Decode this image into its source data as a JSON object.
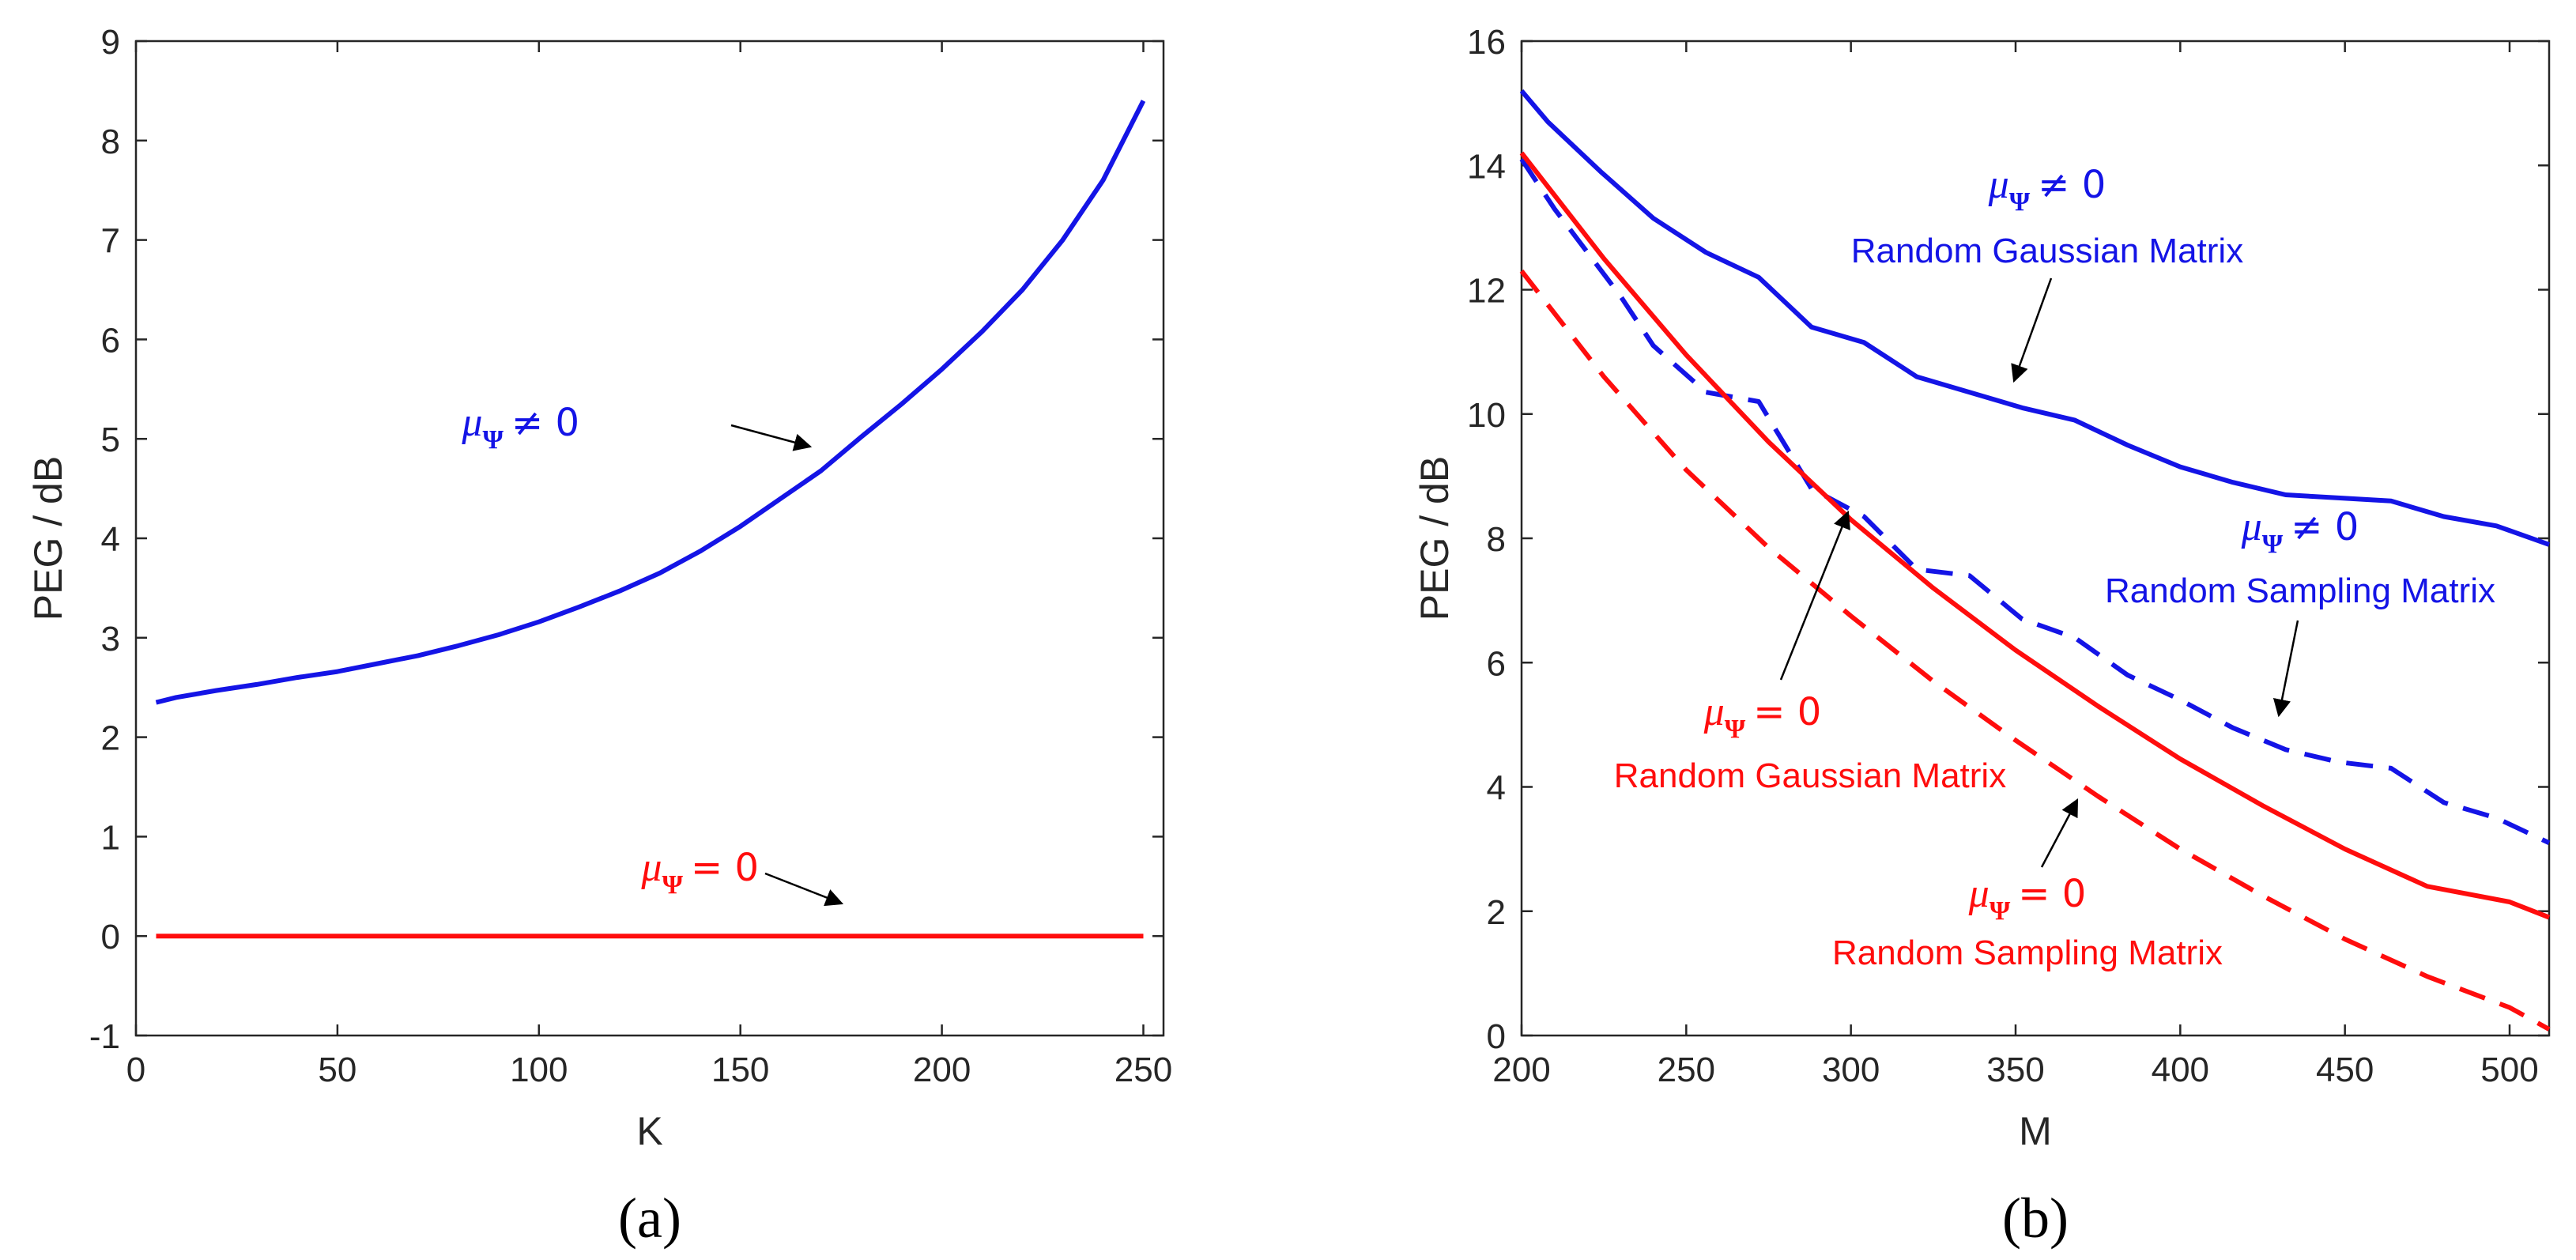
{
  "colors": {
    "blue": "#1414e6",
    "red": "#ff0d0d",
    "axis": "#262626"
  },
  "chart_data": [
    {
      "type": "line",
      "panel_label": "(a)",
      "xlabel": "K",
      "ylabel": "PEG / dB",
      "xlim": [
        0,
        255
      ],
      "ylim": [
        -1,
        9
      ],
      "xticks": [
        "0",
        "50",
        "100",
        "150",
        "200",
        "250"
      ],
      "yticks": [
        "-1",
        "0",
        "1",
        "2",
        "3",
        "4",
        "5",
        "6",
        "7",
        "8",
        "9"
      ],
      "series": [
        {
          "name": "mu_Psi != 0",
          "color": "blue",
          "style": "solid",
          "x": [
            5,
            10,
            20,
            30,
            40,
            50,
            60,
            70,
            80,
            90,
            100,
            110,
            120,
            130,
            140,
            150,
            160,
            170,
            180,
            190,
            200,
            210,
            220,
            230,
            240,
            250
          ],
          "values": [
            2.35,
            2.4,
            2.47,
            2.53,
            2.6,
            2.66,
            2.74,
            2.82,
            2.92,
            3.03,
            3.16,
            3.31,
            3.47,
            3.65,
            3.87,
            4.12,
            4.4,
            4.68,
            5.02,
            5.35,
            5.7,
            6.08,
            6.5,
            7.0,
            7.6,
            8.4
          ]
        },
        {
          "name": "mu_Psi = 0",
          "color": "red",
          "style": "solid",
          "x": [
            5,
            250
          ],
          "values": [
            0,
            0
          ]
        }
      ],
      "annotations": [
        {
          "mu": "μ",
          "sub": "Ψ",
          "rel": "≠ 0",
          "line2": "",
          "color": "blue"
        },
        {
          "mu": "μ",
          "sub": "Ψ",
          "rel": "= 0",
          "line2": "",
          "color": "red"
        }
      ]
    },
    {
      "type": "line",
      "panel_label": "(b)",
      "xlabel": "M",
      "ylabel": "PEG / dB",
      "xlim": [
        200,
        512
      ],
      "ylim": [
        0,
        16
      ],
      "xticks": [
        "200",
        "250",
        "300",
        "350",
        "400",
        "450",
        "500"
      ],
      "yticks": [
        "0",
        "2",
        "4",
        "6",
        "8",
        "10",
        "12",
        "14",
        "16"
      ],
      "series": [
        {
          "name": "mu_Psi != 0, Random Gaussian Matrix",
          "color": "blue",
          "style": "solid",
          "x": [
            200,
            208,
            224,
            240,
            256,
            272,
            288,
            304,
            320,
            336,
            352,
            368,
            384,
            400,
            416,
            432,
            448,
            464,
            480,
            496,
            512
          ],
          "values": [
            15.2,
            14.7,
            13.9,
            13.15,
            12.6,
            12.2,
            11.4,
            11.15,
            10.6,
            10.35,
            10.1,
            9.9,
            9.5,
            9.15,
            8.9,
            8.7,
            8.65,
            8.6,
            8.35,
            8.2,
            7.9
          ]
        },
        {
          "name": "mu_Psi != 0, Random Sampling Matrix",
          "color": "blue",
          "style": "dashed",
          "x": [
            200,
            210,
            220,
            230,
            240,
            256,
            272,
            288,
            304,
            320,
            336,
            352,
            368,
            384,
            400,
            416,
            432,
            448,
            464,
            480,
            496,
            512
          ],
          "values": [
            14.1,
            13.3,
            12.6,
            11.9,
            11.1,
            10.35,
            10.2,
            8.8,
            8.35,
            7.5,
            7.4,
            6.7,
            6.4,
            5.8,
            5.4,
            4.95,
            4.6,
            4.4,
            4.3,
            3.75,
            3.5,
            3.1
          ]
        },
        {
          "name": "mu_Psi = 0, Random Gaussian Matrix",
          "color": "red",
          "style": "solid",
          "x": [
            200,
            225,
            250,
            275,
            300,
            325,
            350,
            375,
            400,
            425,
            450,
            475,
            500,
            512
          ],
          "values": [
            14.2,
            12.5,
            10.95,
            9.55,
            8.3,
            7.2,
            6.2,
            5.3,
            4.45,
            3.7,
            3.0,
            2.4,
            2.15,
            1.9
          ]
        },
        {
          "name": "mu_Psi = 0, Random Sampling Matrix",
          "color": "red",
          "style": "dashed",
          "x": [
            200,
            225,
            250,
            275,
            300,
            325,
            350,
            375,
            400,
            425,
            450,
            475,
            500,
            512
          ],
          "values": [
            12.3,
            10.6,
            9.1,
            7.85,
            6.75,
            5.7,
            4.75,
            3.85,
            3.0,
            2.25,
            1.55,
            0.95,
            0.45,
            0.1
          ]
        }
      ],
      "annotations": [
        {
          "mu": "μ",
          "sub": "Ψ",
          "rel": "≠ 0",
          "line2": "Random Gaussian Matrix",
          "color": "blue"
        },
        {
          "mu": "μ",
          "sub": "Ψ",
          "rel": "≠ 0",
          "line2": "Random Sampling Matrix",
          "color": "blue"
        },
        {
          "mu": "μ",
          "sub": "Ψ",
          "rel": "= 0",
          "line2": "Random Gaussian Matrix",
          "color": "red"
        },
        {
          "mu": "μ",
          "sub": "Ψ",
          "rel": "= 0",
          "line2": "Random Sampling Matrix",
          "color": "red"
        }
      ]
    }
  ]
}
